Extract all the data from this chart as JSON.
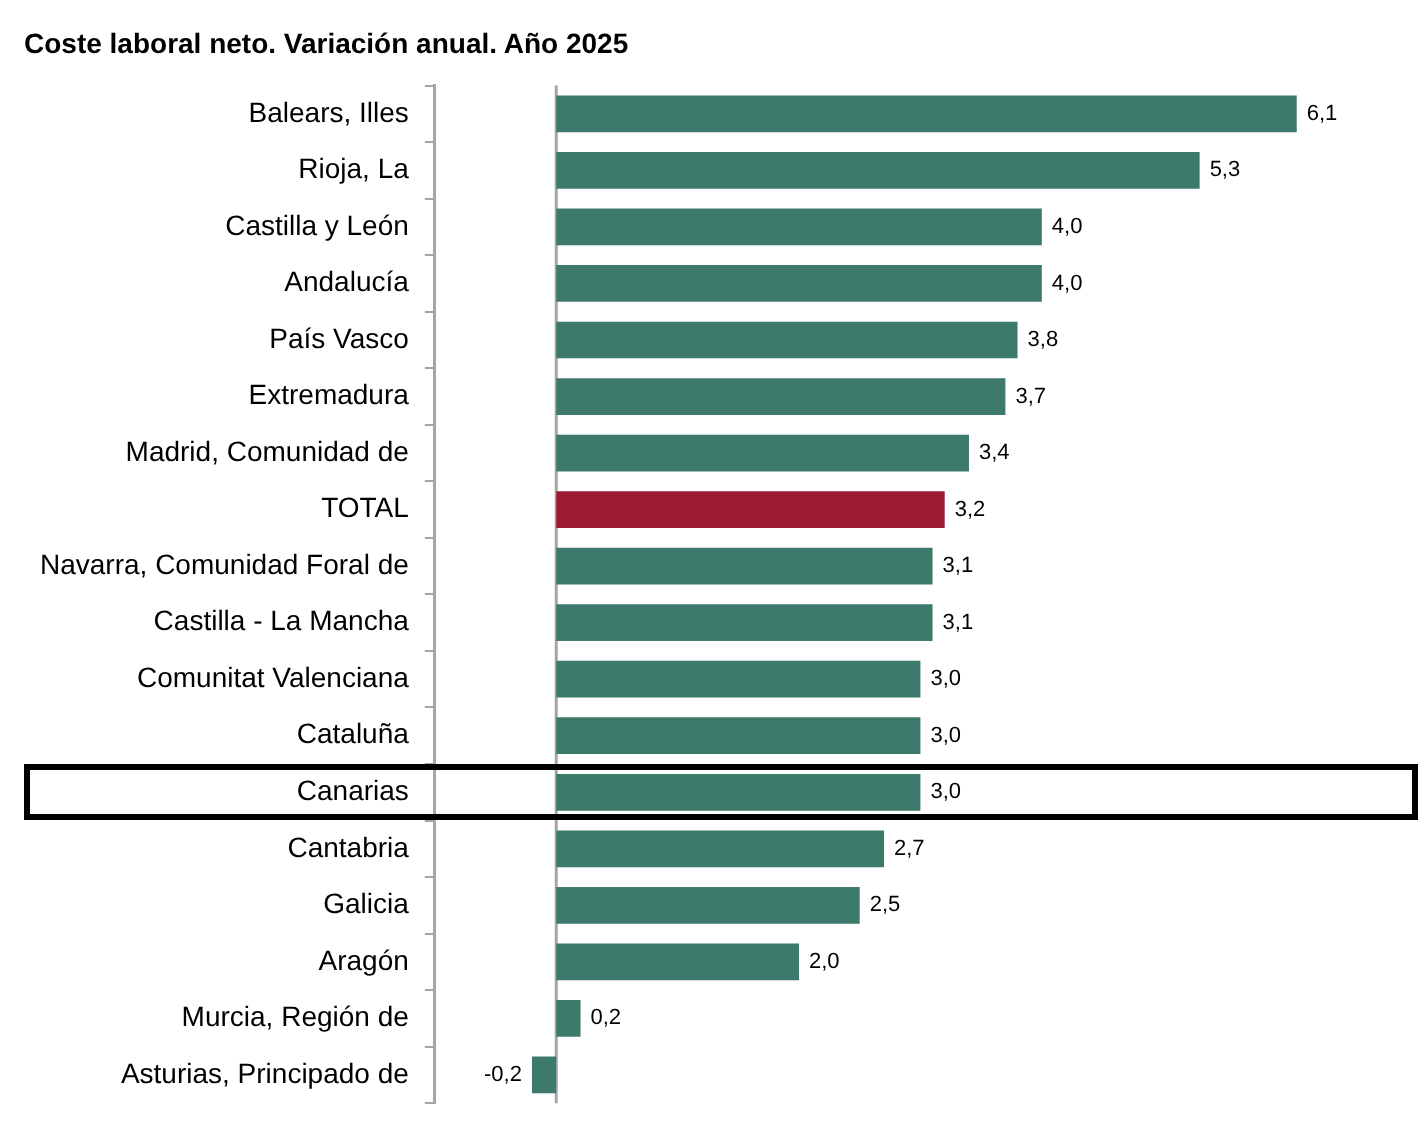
{
  "chart_data": {
    "type": "bar",
    "orientation": "horizontal",
    "title": "Coste laboral neto. Variación anual. Año 2025",
    "categories": [
      "Balears, Illes",
      "Rioja, La",
      "Castilla y León",
      "Andalucía",
      "País Vasco",
      "Extremadura",
      "Madrid, Comunidad de",
      "TOTAL",
      "Navarra, Comunidad Foral de",
      "Castilla - La Mancha",
      "Comunitat Valenciana",
      "Cataluña",
      "Canarias",
      "Cantabria",
      "Galicia",
      "Aragón",
      "Murcia, Región de",
      "Asturias, Principado de"
    ],
    "values": [
      6.1,
      5.3,
      4.0,
      4.0,
      3.8,
      3.7,
      3.4,
      3.2,
      3.1,
      3.1,
      3.0,
      3.0,
      3.0,
      2.7,
      2.5,
      2.0,
      0.2,
      -0.2
    ],
    "value_labels": [
      "6,1",
      "5,3",
      "4,0",
      "4,0",
      "3,8",
      "3,7",
      "3,4",
      "3,2",
      "3,1",
      "3,1",
      "3,0",
      "3,0",
      "3,0",
      "2,7",
      "2,5",
      "2,0",
      "0,2",
      "-0,2"
    ],
    "colors": [
      "#3d7a6c",
      "#3d7a6c",
      "#3d7a6c",
      "#3d7a6c",
      "#3d7a6c",
      "#3d7a6c",
      "#3d7a6c",
      "#9b1b32",
      "#3d7a6c",
      "#3d7a6c",
      "#3d7a6c",
      "#3d7a6c",
      "#3d7a6c",
      "#3d7a6c",
      "#3d7a6c",
      "#3d7a6c",
      "#3d7a6c",
      "#3d7a6c"
    ],
    "tick_labels": "y",
    "legend": false,
    "ref_lines": [
      {
        "axis": "x",
        "value": 0,
        "color": "#a6a6a6"
      }
    ]
  }
}
